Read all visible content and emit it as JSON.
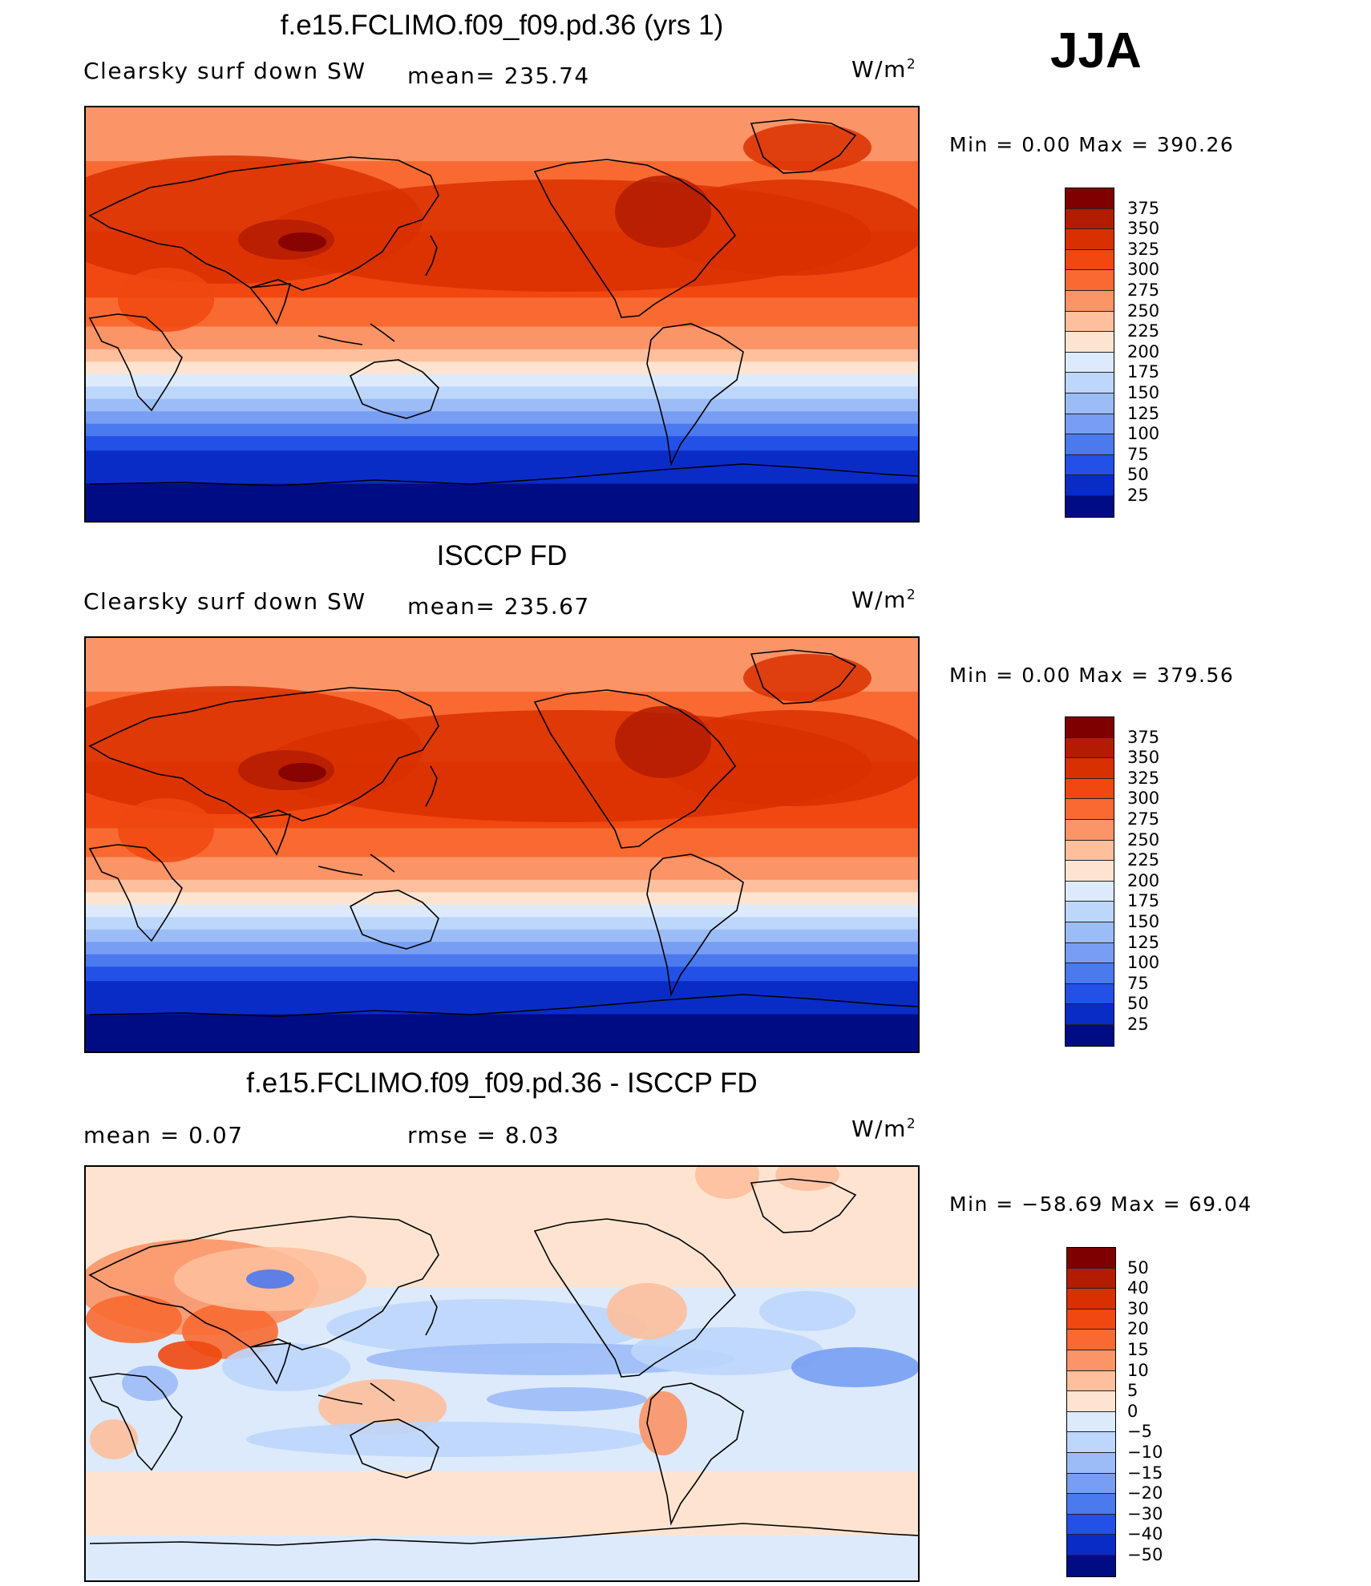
{
  "season": "JJA",
  "panel1": {
    "title": "f.e15.FCLIMO.f09_f09.pd.36 (yrs 1)",
    "left": "Clearsky surf down SW",
    "mid": "mean= 235.74",
    "unit": "W/m",
    "unit_sup": "2",
    "minmax": "Min =    0.00 Max = 390.26"
  },
  "panel2": {
    "title": "ISCCP FD",
    "left": "Clearsky surf down SW",
    "mid": "mean= 235.67",
    "unit": "W/m",
    "unit_sup": "2",
    "minmax": "Min =    0.00 Max = 379.56"
  },
  "panel3": {
    "title": "f.e15.FCLIMO.f09_f09.pd.36 - ISCCP FD",
    "left": "mean =    0.07",
    "mid": "rmse =     8.03",
    "unit": "W/m",
    "unit_sup": "2",
    "minmax": "Min = −58.69 Max =   69.04"
  },
  "chart_data": [
    {
      "type": "heatmap",
      "title": "f.e15.FCLIMO.f09_f09.pd.36 (yrs 1)",
      "variable": "Clearsky surf down SW",
      "units": "W/m2",
      "mean": 235.74,
      "min": 0.0,
      "max": 390.26,
      "levels": [
        "375",
        "350",
        "325",
        "300",
        "275",
        "250",
        "225",
        "200",
        "175",
        "150",
        "125",
        "100",
        "75",
        "50",
        "25"
      ],
      "colors": [
        "#7f0000",
        "#b31c00",
        "#d93000",
        "#f04810",
        "#f86a32",
        "#fb9466",
        "#fdbf9c",
        "#fee4d0",
        "#dceafc",
        "#bdd6fb",
        "#9cbcf7",
        "#779ef3",
        "#4b79ee",
        "#2350e6",
        "#0a2cc6",
        "#000c84"
      ]
    },
    {
      "type": "heatmap",
      "title": "ISCCP FD",
      "variable": "Clearsky surf down SW",
      "units": "W/m2",
      "mean": 235.67,
      "min": 0.0,
      "max": 379.56,
      "levels": [
        "375",
        "350",
        "325",
        "300",
        "275",
        "250",
        "225",
        "200",
        "175",
        "150",
        "125",
        "100",
        "75",
        "50",
        "25"
      ],
      "colors": [
        "#7f0000",
        "#b31c00",
        "#d93000",
        "#f04810",
        "#f86a32",
        "#fb9466",
        "#fdbf9c",
        "#fee4d0",
        "#dceafc",
        "#bdd6fb",
        "#9cbcf7",
        "#779ef3",
        "#4b79ee",
        "#2350e6",
        "#0a2cc6",
        "#000c84"
      ]
    },
    {
      "type": "heatmap",
      "title": "f.e15.FCLIMO.f09_f09.pd.36 - ISCCP FD",
      "units": "W/m2",
      "mean": 0.07,
      "rmse": 8.03,
      "min": -58.69,
      "max": 69.04,
      "levels": [
        "50",
        "40",
        "30",
        "20",
        "15",
        "10",
        "5",
        "0",
        "−5",
        "−10",
        "−15",
        "−20",
        "−30",
        "−40",
        "−50"
      ],
      "colors": [
        "#7f0000",
        "#b31c00",
        "#d93000",
        "#f04810",
        "#f86a32",
        "#fb9466",
        "#fdbf9c",
        "#fee4d0",
        "#dceafc",
        "#bdd6fb",
        "#9cbcf7",
        "#779ef3",
        "#4b79ee",
        "#2350e6",
        "#0a2cc6",
        "#000c84"
      ]
    }
  ]
}
